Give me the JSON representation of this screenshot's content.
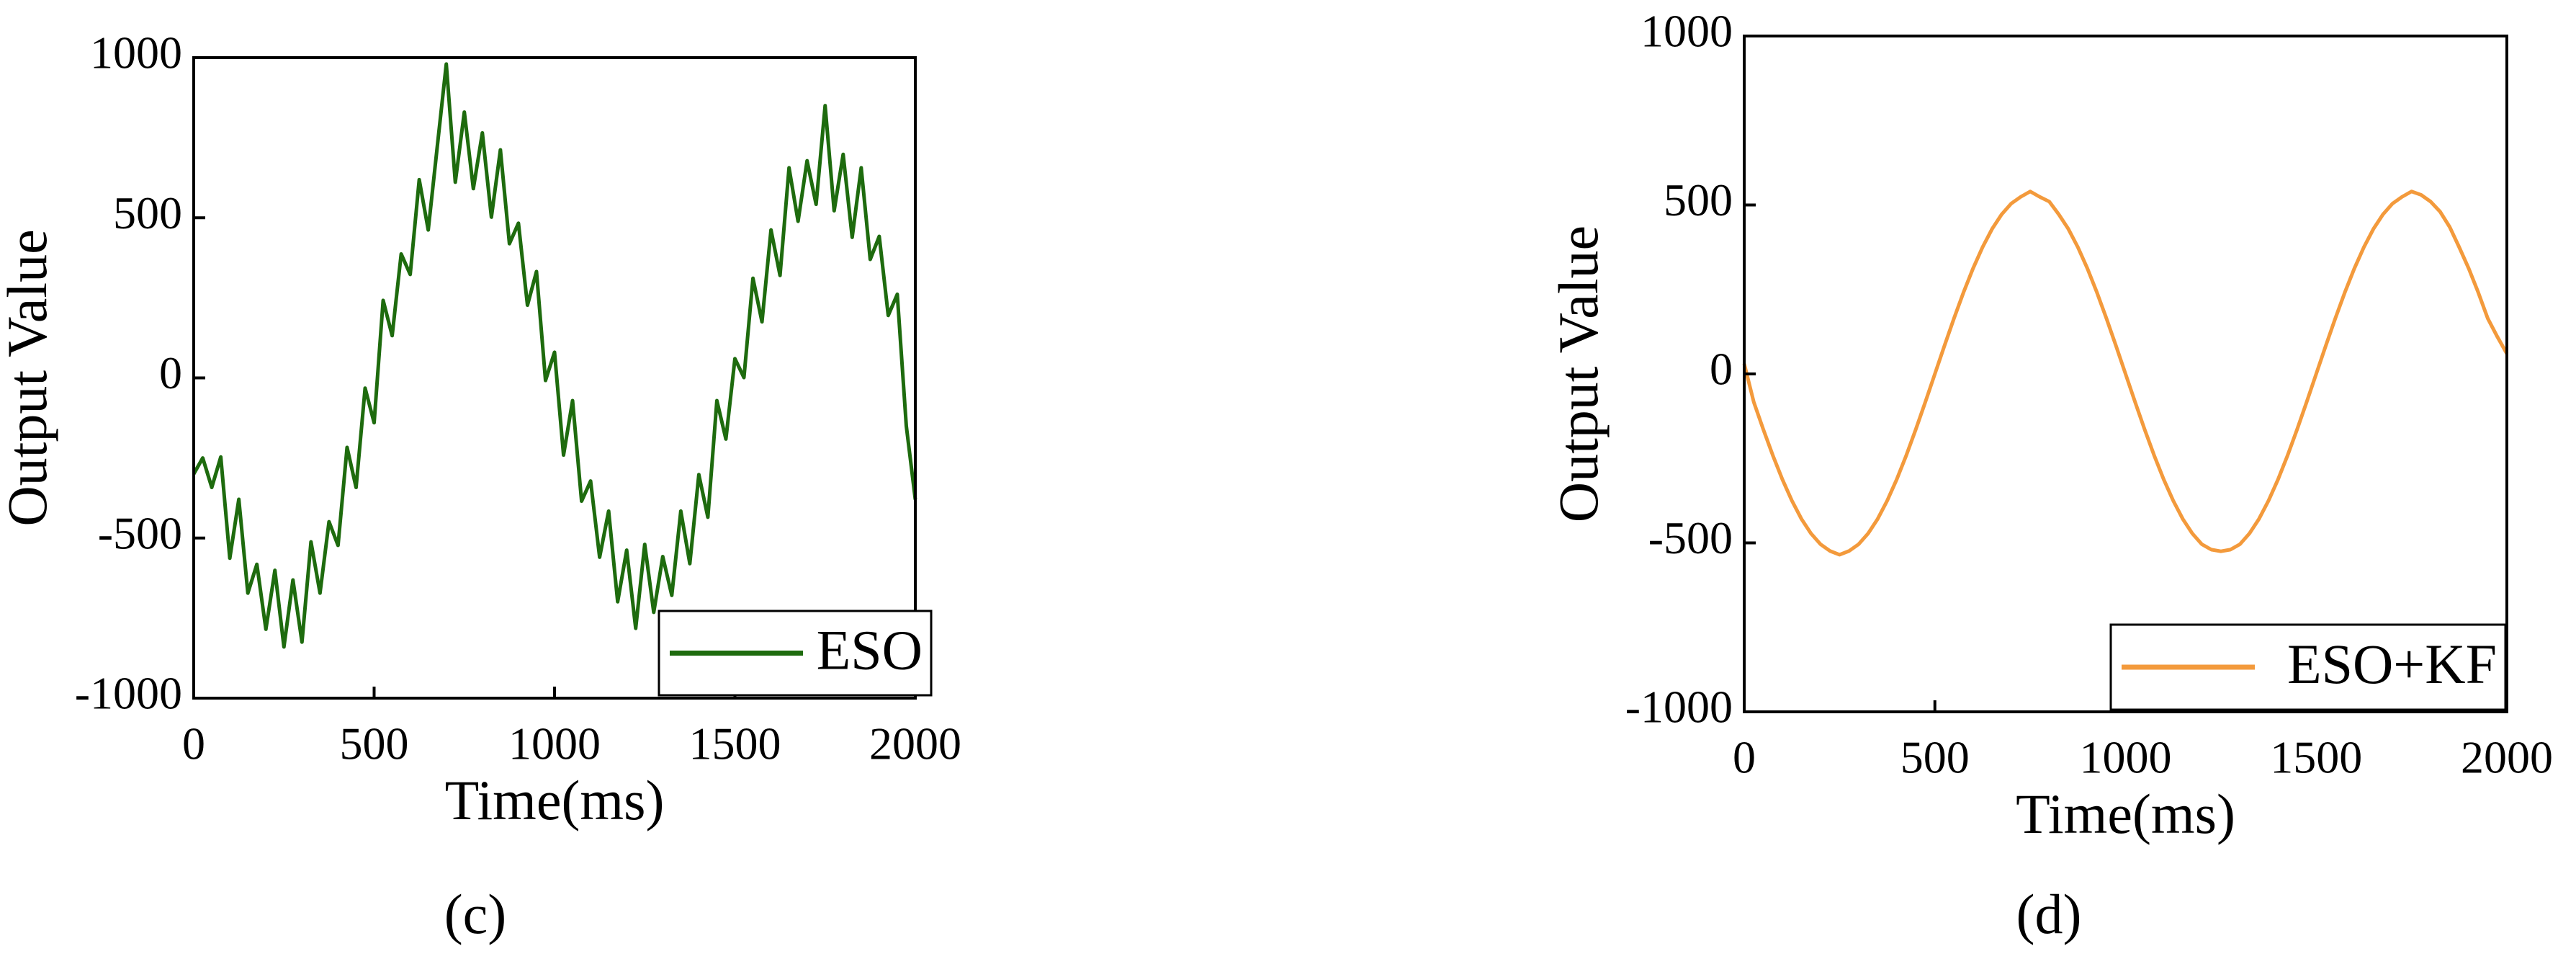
{
  "chart_data": [
    {
      "type": "line",
      "label": "(c)",
      "xlabel": "Time(ms)",
      "ylabel": "Output Value",
      "xlim": [
        0,
        2000
      ],
      "xticks": [
        0,
        500,
        1000,
        1500,
        2000
      ],
      "ylim": [
        -1000,
        1000
      ],
      "yticks": [
        -1000,
        -500,
        0,
        500,
        1000
      ],
      "legend": "lower right",
      "x": [
        0,
        25,
        50,
        75,
        100,
        125,
        150,
        175,
        200,
        225,
        250,
        275,
        300,
        325,
        350,
        375,
        400,
        425,
        450,
        475,
        500,
        525,
        550,
        575,
        600,
        625,
        650,
        675,
        700,
        725,
        750,
        775,
        800,
        825,
        850,
        875,
        900,
        925,
        950,
        975,
        1000,
        1025,
        1050,
        1075,
        1100,
        1125,
        1150,
        1175,
        1200,
        1225,
        1250,
        1275,
        1300,
        1325,
        1350,
        1375,
        1400,
        1425,
        1450,
        1475,
        1500,
        1525,
        1550,
        1575,
        1600,
        1625,
        1650,
        1675,
        1700,
        1725,
        1750,
        1775,
        1800,
        1825,
        1850,
        1875,
        1900,
        1925,
        1950,
        1975,
        2000
      ],
      "series": [
        {
          "name": "ESO",
          "color": "#1e6b0e",
          "values": [
            -300,
            -250,
            -342,
            -247,
            -563,
            -379,
            -672,
            -582,
            -785,
            -601,
            -840,
            -631,
            -825,
            -512,
            -672,
            -449,
            -523,
            -217,
            -342,
            -32,
            -140,
            242,
            132,
            387,
            323,
            619,
            462,
            722,
            980,
            611,
            830,
            591,
            765,
            502,
            712,
            419,
            483,
            227,
            332,
            -8,
            80,
            -241,
            -71,
            -385,
            -322,
            -560,
            -416,
            -699,
            -538,
            -782,
            -520,
            -732,
            -558,
            -679,
            -416,
            -580,
            -302,
            -435,
            -71,
            -191,
            60,
            1,
            311,
            175,
            462,
            320,
            656,
            489,
            678,
            542,
            850,
            522,
            698,
            439,
            656,
            370,
            442,
            195,
            261,
            -150,
            -380
          ]
        }
      ]
    },
    {
      "type": "line",
      "label": "(d)",
      "xlabel": "Time(ms)",
      "ylabel": "Output Value",
      "xlim": [
        0,
        2000
      ],
      "xticks": [
        0,
        500,
        1000,
        1500,
        2000
      ],
      "ylim": [
        -1000,
        1000
      ],
      "yticks": [
        -1000,
        -500,
        0,
        500,
        1000
      ],
      "legend": "lower right",
      "x": [
        0,
        25,
        50,
        75,
        100,
        125,
        150,
        175,
        200,
        225,
        250,
        275,
        300,
        325,
        350,
        375,
        400,
        425,
        450,
        475,
        500,
        525,
        550,
        575,
        600,
        625,
        650,
        675,
        700,
        725,
        750,
        775,
        800,
        825,
        850,
        875,
        900,
        925,
        950,
        975,
        1000,
        1025,
        1050,
        1075,
        1100,
        1125,
        1150,
        1175,
        1200,
        1225,
        1250,
        1275,
        1300,
        1325,
        1350,
        1375,
        1400,
        1425,
        1450,
        1475,
        1500,
        1525,
        1550,
        1575,
        1600,
        1625,
        1650,
        1675,
        1700,
        1725,
        1750,
        1775,
        1800,
        1825,
        1850,
        1875,
        1900,
        1925,
        1950,
        1975,
        2000
      ],
      "series": [
        {
          "name": "ESO+KF",
          "color": "#f39a3c",
          "values": [
            30,
            -83,
            -164,
            -241,
            -312,
            -375,
            -429,
            -472,
            -504,
            -524,
            -535,
            -524,
            -504,
            -472,
            -429,
            -375,
            -312,
            -241,
            -164,
            -83,
            0,
            83,
            164,
            241,
            312,
            375,
            429,
            472,
            504,
            524,
            540,
            524,
            510,
            472,
            429,
            375,
            312,
            241,
            164,
            83,
            0,
            -83,
            -164,
            -241,
            -312,
            -375,
            -429,
            -472,
            -504,
            -520,
            -525,
            -520,
            -504,
            -472,
            -429,
            -375,
            -312,
            -241,
            -164,
            -83,
            0,
            83,
            164,
            241,
            312,
            375,
            429,
            472,
            504,
            524,
            540,
            530,
            510,
            480,
            435,
            375,
            312,
            241,
            164,
            110,
            60
          ]
        }
      ]
    }
  ]
}
